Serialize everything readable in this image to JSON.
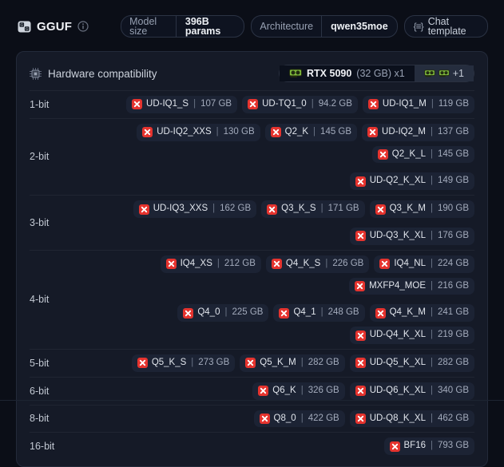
{
  "header": {
    "title": "GGUF",
    "pills": [
      {
        "label": "Model size",
        "value": "396B params"
      },
      {
        "label": "Architecture",
        "value": "qwen35moe"
      },
      {
        "label": "Chat template"
      }
    ]
  },
  "card": {
    "title": "Hardware compatibility",
    "gpu": {
      "name": "RTX 5090",
      "detail": "(32 GB) x1",
      "more": "+1"
    },
    "separator": "|",
    "rows": [
      {
        "label": "1-bit",
        "badges": [
          {
            "name": "UD-IQ1_S",
            "size": "107 GB",
            "status": "incompatible"
          },
          {
            "name": "UD-TQ1_0",
            "size": "94.2 GB",
            "status": "incompatible"
          },
          {
            "name": "UD-IQ1_M",
            "size": "119 GB",
            "status": "incompatible"
          }
        ]
      },
      {
        "label": "2-bit",
        "badges": [
          {
            "name": "UD-IQ2_XXS",
            "size": "130 GB",
            "status": "incompatible"
          },
          {
            "name": "Q2_K",
            "size": "145 GB",
            "status": "incompatible"
          },
          {
            "name": "UD-IQ2_M",
            "size": "137 GB",
            "status": "incompatible"
          },
          {
            "name": "Q2_K_L",
            "size": "145 GB",
            "status": "incompatible",
            "break_after": true
          },
          {
            "name": "UD-Q2_K_XL",
            "size": "149 GB",
            "status": "incompatible"
          }
        ]
      },
      {
        "label": "3-bit",
        "badges": [
          {
            "name": "UD-IQ3_XXS",
            "size": "162 GB",
            "status": "incompatible"
          },
          {
            "name": "Q3_K_S",
            "size": "171 GB",
            "status": "incompatible"
          },
          {
            "name": "Q3_K_M",
            "size": "190 GB",
            "status": "incompatible",
            "break_after": true
          },
          {
            "name": "UD-Q3_K_XL",
            "size": "176 GB",
            "status": "incompatible"
          }
        ]
      },
      {
        "label": "4-bit",
        "badges": [
          {
            "name": "IQ4_XS",
            "size": "212 GB",
            "status": "incompatible"
          },
          {
            "name": "Q4_K_S",
            "size": "226 GB",
            "status": "incompatible"
          },
          {
            "name": "IQ4_NL",
            "size": "224 GB",
            "status": "incompatible"
          },
          {
            "name": "MXFP4_MOE",
            "size": "216 GB",
            "status": "incompatible",
            "break_after": true
          },
          {
            "name": "Q4_0",
            "size": "225 GB",
            "status": "incompatible"
          },
          {
            "name": "Q4_1",
            "size": "248 GB",
            "status": "incompatible"
          },
          {
            "name": "Q4_K_M",
            "size": "241 GB",
            "status": "incompatible"
          },
          {
            "name": "UD-Q4_K_XL",
            "size": "219 GB",
            "status": "incompatible"
          }
        ]
      },
      {
        "label": "5-bit",
        "badges": [
          {
            "name": "Q5_K_S",
            "size": "273 GB",
            "status": "incompatible"
          },
          {
            "name": "Q5_K_M",
            "size": "282 GB",
            "status": "incompatible"
          },
          {
            "name": "UD-Q5_K_XL",
            "size": "282 GB",
            "status": "incompatible"
          }
        ]
      },
      {
        "label": "6-bit",
        "badges": [
          {
            "name": "Q6_K",
            "size": "326 GB",
            "status": "incompatible"
          },
          {
            "name": "UD-Q6_K_XL",
            "size": "340 GB",
            "status": "incompatible"
          }
        ]
      },
      {
        "label": "8-bit",
        "badges": [
          {
            "name": "Q8_0",
            "size": "422 GB",
            "status": "incompatible"
          },
          {
            "name": "UD-Q8_K_XL",
            "size": "462 GB",
            "status": "incompatible"
          }
        ]
      },
      {
        "label": "16-bit",
        "badges": [
          {
            "name": "BF16",
            "size": "793 GB",
            "status": "incompatible"
          }
        ]
      }
    ]
  },
  "colors": {
    "incompatible_red": "#e5332e",
    "gpu_green": "#7fb93c",
    "card_bg": "#151a27",
    "page_bg": "#0b0e17"
  }
}
